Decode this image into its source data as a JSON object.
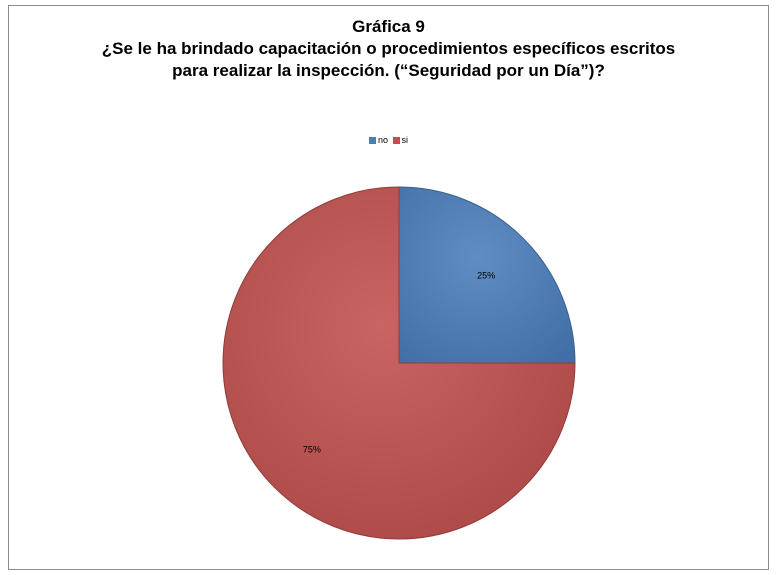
{
  "chart_data": {
    "type": "pie",
    "title": "Gráfica 9",
    "subtitle_lines": [
      "¿Se le ha brindado capacitación o procedimientos específicos escritos",
      "para realizar la inspección. (“Seguridad por un Día”)?"
    ],
    "categories": [
      "no",
      "si"
    ],
    "values": [
      25,
      75
    ],
    "labels": [
      "25%",
      "75%"
    ],
    "colors": [
      "#4a7ebb",
      "#c0504d"
    ],
    "legend_position": "top"
  }
}
